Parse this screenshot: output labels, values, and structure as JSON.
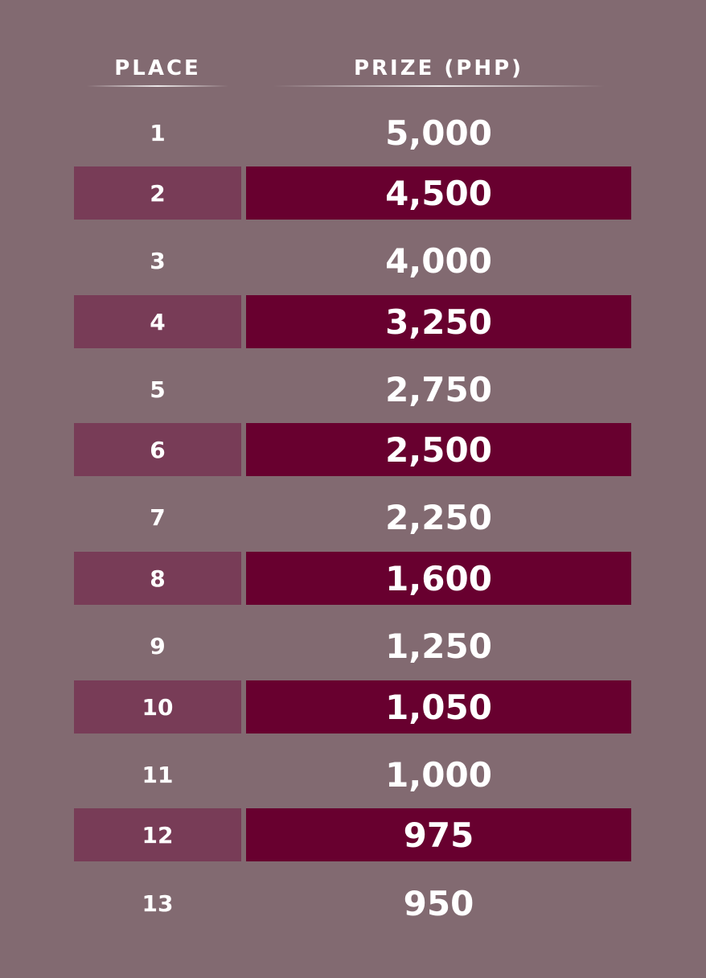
{
  "header": {
    "place_label": "PLACE",
    "prize_label": "PRIZE (PHP)"
  },
  "colors": {
    "background": "#826a71",
    "shaded_place": "#783c57",
    "shaded_prize": "#68002f",
    "text": "#ffffff"
  },
  "rows": [
    {
      "place": "1",
      "prize": "5,000"
    },
    {
      "place": "2",
      "prize": "4,500"
    },
    {
      "place": "3",
      "prize": "4,000"
    },
    {
      "place": "4",
      "prize": "3,250"
    },
    {
      "place": "5",
      "prize": "2,750"
    },
    {
      "place": "6",
      "prize": "2,500"
    },
    {
      "place": "7",
      "prize": "2,250"
    },
    {
      "place": "8",
      "prize": "1,600"
    },
    {
      "place": "9",
      "prize": "1,250"
    },
    {
      "place": "10",
      "prize": "1,050"
    },
    {
      "place": "11",
      "prize": "1,000"
    },
    {
      "place": "12",
      "prize": "975"
    },
    {
      "place": "13",
      "prize": "950"
    }
  ]
}
